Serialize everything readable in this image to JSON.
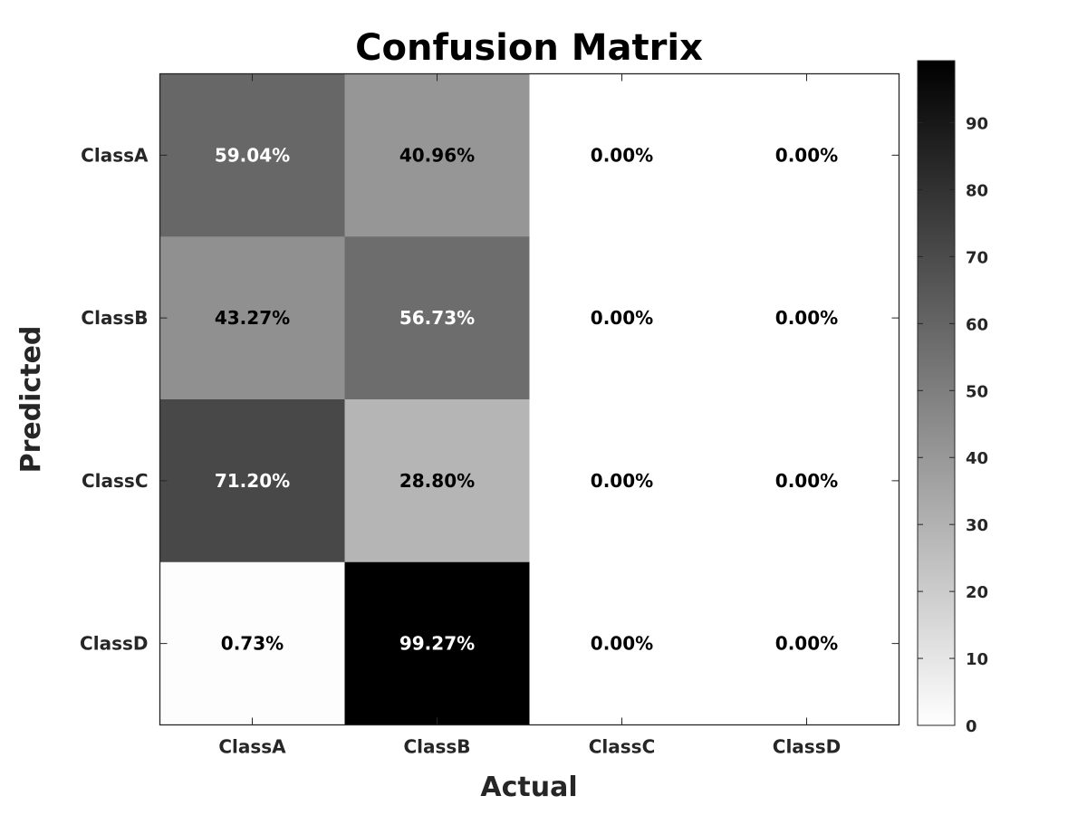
{
  "chart_data": {
    "type": "heatmap",
    "title": "Confusion Matrix",
    "xlabel": "Actual",
    "ylabel": "Predicted",
    "x_categories": [
      "ClassA",
      "ClassB",
      "ClassC",
      "ClassD"
    ],
    "y_categories": [
      "ClassA",
      "ClassB",
      "ClassC",
      "ClassD"
    ],
    "values": [
      [
        59.04,
        40.96,
        0.0,
        0.0
      ],
      [
        43.27,
        56.73,
        0.0,
        0.0
      ],
      [
        71.2,
        28.8,
        0.0,
        0.0
      ],
      [
        0.73,
        99.27,
        0.0,
        0.0
      ]
    ],
    "cell_labels": [
      [
        "59.04%",
        "40.96%",
        "0.00%",
        "0.00%"
      ],
      [
        "43.27%",
        "56.73%",
        "0.00%",
        "0.00%"
      ],
      [
        "71.20%",
        "28.80%",
        "0.00%",
        "0.00%"
      ],
      [
        "0.73%",
        "99.27%",
        "0.00%",
        "0.00%"
      ]
    ],
    "colormap": "gray_reversed",
    "colorbar": {
      "range": [
        0,
        99.27
      ],
      "ticks": [
        "0",
        "10",
        "20",
        "30",
        "40",
        "50",
        "60",
        "70",
        "80",
        "90"
      ]
    },
    "grid": false,
    "colors": {
      "low": "#ffffff",
      "high": "#000000",
      "text_dark": "#000000",
      "text_light": "#ffffff",
      "axis_text": "#262626"
    }
  }
}
